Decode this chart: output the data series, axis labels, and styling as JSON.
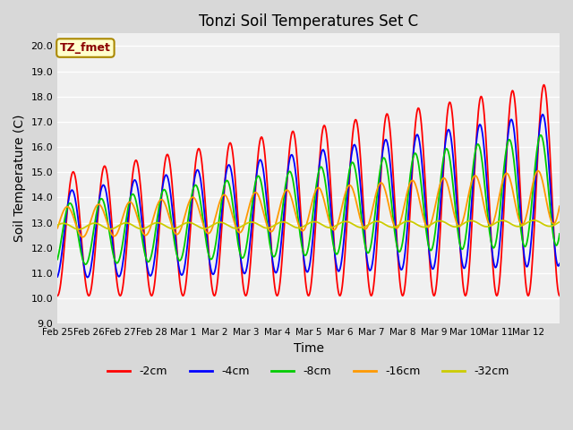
{
  "title": "Tonzi Soil Temperatures Set C",
  "xlabel": "Time",
  "ylabel": "Soil Temperature (C)",
  "ylim": [
    9.0,
    20.5
  ],
  "yticks": [
    9.0,
    10.0,
    11.0,
    12.0,
    13.0,
    14.0,
    15.0,
    16.0,
    17.0,
    18.0,
    19.0,
    20.0
  ],
  "ytick_labels": [
    "9.0",
    "10.0",
    "11.0",
    "12.0",
    "13.0",
    "14.0",
    "15.0",
    "16.0",
    "17.0",
    "18.0",
    "19.0",
    "20.0"
  ],
  "xtick_positions": [
    0,
    1,
    2,
    3,
    4,
    5,
    6,
    7,
    8,
    9,
    10,
    11,
    12,
    13,
    14,
    15,
    16
  ],
  "xtick_labels": [
    "Feb 25",
    "Feb 26",
    "Feb 27",
    "Feb 28",
    "Mar 1",
    "Mar 2",
    "Mar 3",
    "Mar 4",
    "Mar 5",
    "Mar 6",
    "Mar 7",
    "Mar 8",
    "Mar 9",
    "Mar 10",
    "Mar 11",
    "Mar 12",
    ""
  ],
  "fig_bg_color": "#d8d8d8",
  "plot_bg_color": "#f0f0f0",
  "grid_color": "#ffffff",
  "legend_label": "TZ_fmet",
  "legend_box_facecolor": "#ffffcc",
  "legend_box_edgecolor": "#aa8800",
  "legend_text_color": "#8B0000",
  "series": [
    {
      "label": "-2cm",
      "color": "#ff0000",
      "lw": 1.3
    },
    {
      "label": "-4cm",
      "color": "#0000ff",
      "lw": 1.3
    },
    {
      "label": "-8cm",
      "color": "#00cc00",
      "lw": 1.3
    },
    {
      "label": "-16cm",
      "color": "#ff9900",
      "lw": 1.3
    },
    {
      "label": "-32cm",
      "color": "#cccc00",
      "lw": 1.3
    }
  ],
  "n_days": 16,
  "points_per_day": 48
}
